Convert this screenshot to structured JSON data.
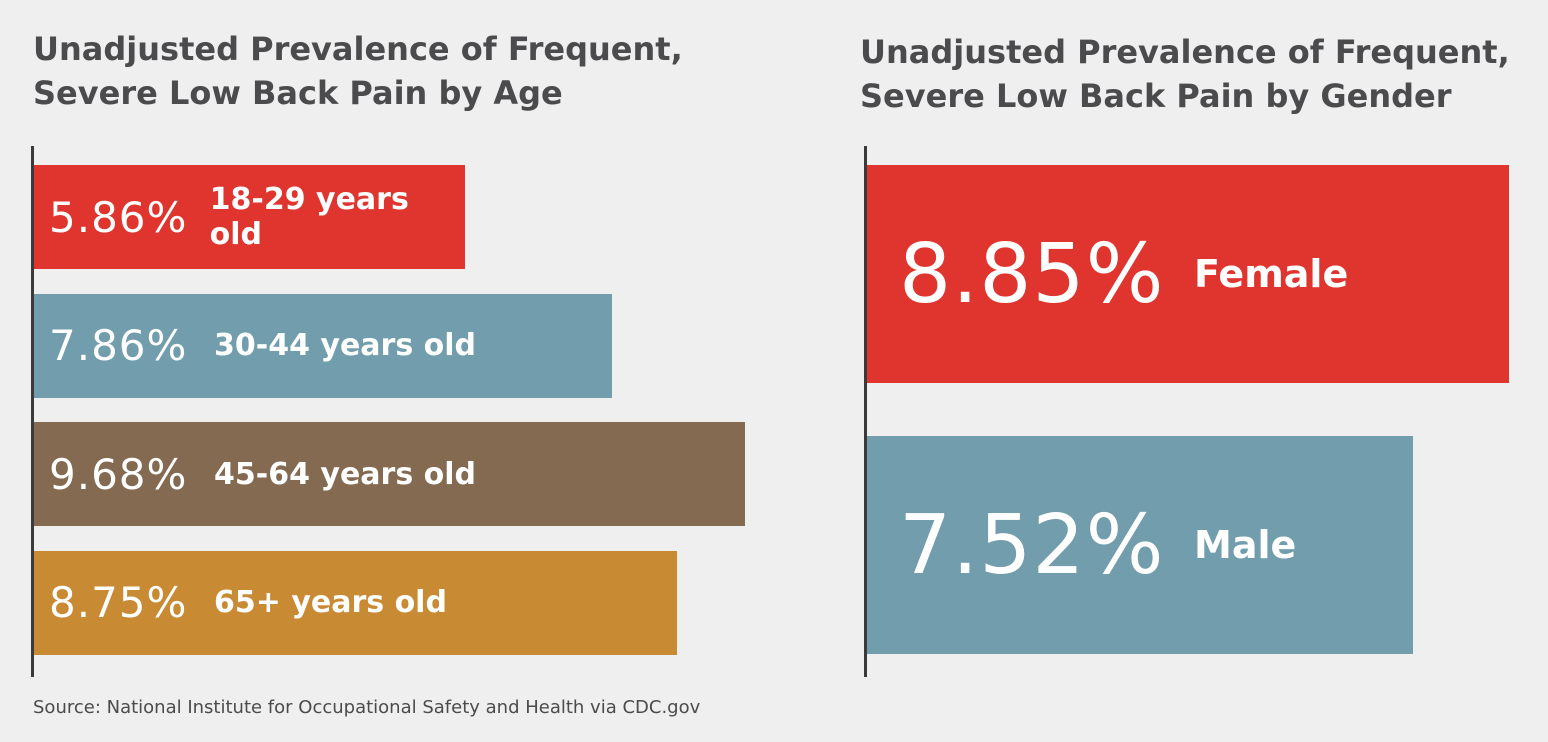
{
  "chart_data": [
    {
      "type": "bar",
      "orientation": "horizontal",
      "title": "Unadjusted Prevalence of Frequent,\nSevere Low Back Pain by Age",
      "categories": [
        "18-29 years old",
        "30-44 years old",
        "45-64 years old",
        "65+ years old"
      ],
      "values": [
        5.86,
        7.86,
        9.68,
        8.75
      ],
      "value_labels": [
        "5.86%",
        "7.86%",
        "9.68%",
        "8.75%"
      ],
      "colors": [
        "#e0352f",
        "#719dac",
        "#846a51",
        "#c88a33"
      ],
      "xlim": [
        0,
        10
      ],
      "grid": false,
      "legend": "none"
    },
    {
      "type": "bar",
      "orientation": "horizontal",
      "title": "Unadjusted Prevalence of Frequent,\nSevere Low Back Pain by Gender",
      "categories": [
        "Female",
        "Male"
      ],
      "values": [
        8.85,
        7.52
      ],
      "value_labels": [
        "8.85%",
        "7.52%"
      ],
      "colors": [
        "#e0352f",
        "#719dac"
      ],
      "xlim": [
        0,
        9
      ],
      "grid": false,
      "legend": "none"
    }
  ],
  "source": "Source: National Institute for Occupational Safety and Health via CDC.gov"
}
